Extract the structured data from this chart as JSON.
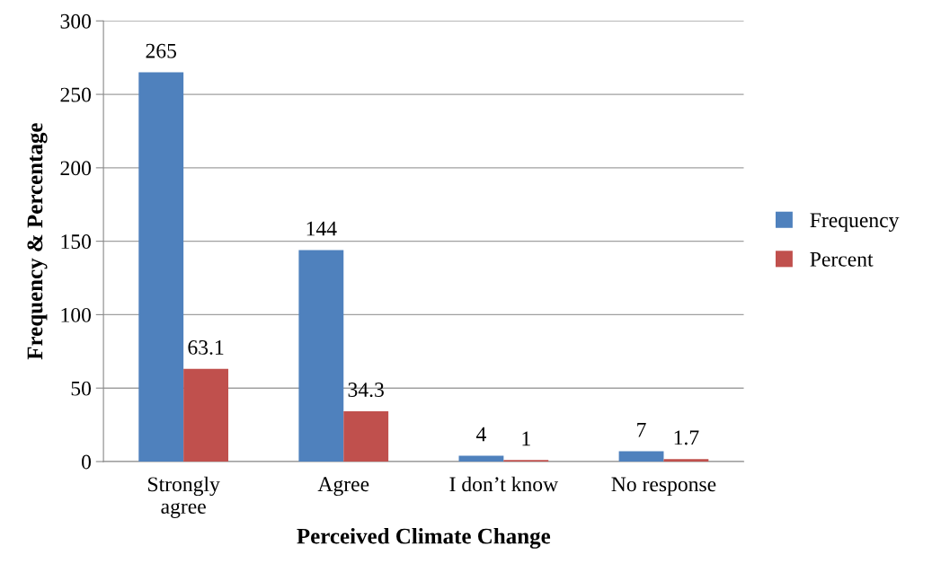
{
  "chart_data": {
    "type": "bar",
    "xlabel": "Perceived Climate Change",
    "ylabel": "Frequency & Percentage",
    "categories": [
      "Strongly\nagree",
      "Agree",
      "I don’t know",
      "No response"
    ],
    "series": [
      {
        "name": "Frequency",
        "color": "#4f81bd",
        "values": [
          265,
          144,
          4,
          7
        ]
      },
      {
        "name": "Percent",
        "color": "#c0504d",
        "values": [
          63.1,
          34.3,
          1,
          1.7
        ]
      }
    ],
    "ylim": [
      0,
      300
    ],
    "yticks": [
      0,
      50,
      100,
      150,
      200,
      250,
      300
    ],
    "grid": "y",
    "legend": "right",
    "data_labels": true
  }
}
